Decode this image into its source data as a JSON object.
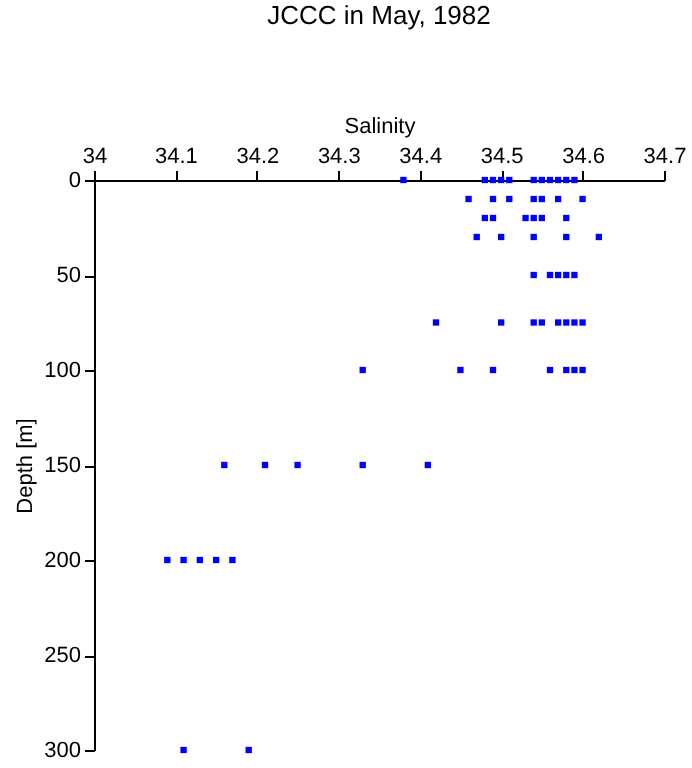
{
  "chart_data": {
    "type": "scatter",
    "title": "JCCC in May, 1982",
    "xlabel": "Salinity",
    "ylabel": "Depth [m]",
    "series": [
      {
        "color": "#0000ff",
        "x": [
          34.38,
          34.48,
          34.49,
          34.5,
          34.51,
          34.54,
          34.55,
          34.56,
          34.57,
          34.58,
          34.59,
          34.46,
          34.49,
          34.51,
          34.54,
          34.55,
          34.57,
          34.6,
          34.48,
          34.49,
          34.53,
          34.54,
          34.55,
          34.58,
          34.47,
          34.5,
          34.54,
          34.58,
          34.62,
          34.54,
          34.56,
          34.57,
          34.58,
          34.59,
          34.42,
          34.5,
          34.54,
          34.55,
          34.57,
          34.58,
          34.59,
          34.6,
          34.33,
          34.45,
          34.49,
          34.56,
          34.58,
          34.59,
          34.6,
          34.16,
          34.21,
          34.25,
          34.33,
          34.41,
          34.09,
          34.11,
          34.13,
          34.15,
          34.17,
          34.11,
          34.19
        ],
        "values": [
          0,
          0,
          0,
          0,
          0,
          0,
          0,
          0,
          0,
          0,
          0,
          10,
          10,
          10,
          10,
          10,
          10,
          10,
          20,
          20,
          20,
          20,
          20,
          20,
          30,
          30,
          30,
          30,
          30,
          50,
          50,
          50,
          50,
          50,
          75,
          75,
          75,
          75,
          75,
          75,
          75,
          75,
          100,
          100,
          100,
          100,
          100,
          100,
          100,
          150,
          150,
          150,
          150,
          150,
          200,
          200,
          200,
          200,
          200,
          300,
          300
        ]
      }
    ],
    "xlim": [
      34,
      34.7
    ],
    "xticks": [
      34,
      34.1,
      34.2,
      34.3,
      34.4,
      34.5,
      34.6,
      34.7
    ],
    "ylim": [
      300,
      0
    ],
    "yticks": [
      0,
      50,
      100,
      150,
      200,
      250,
      300
    ],
    "marker": "square",
    "grid": false,
    "legend": false
  }
}
